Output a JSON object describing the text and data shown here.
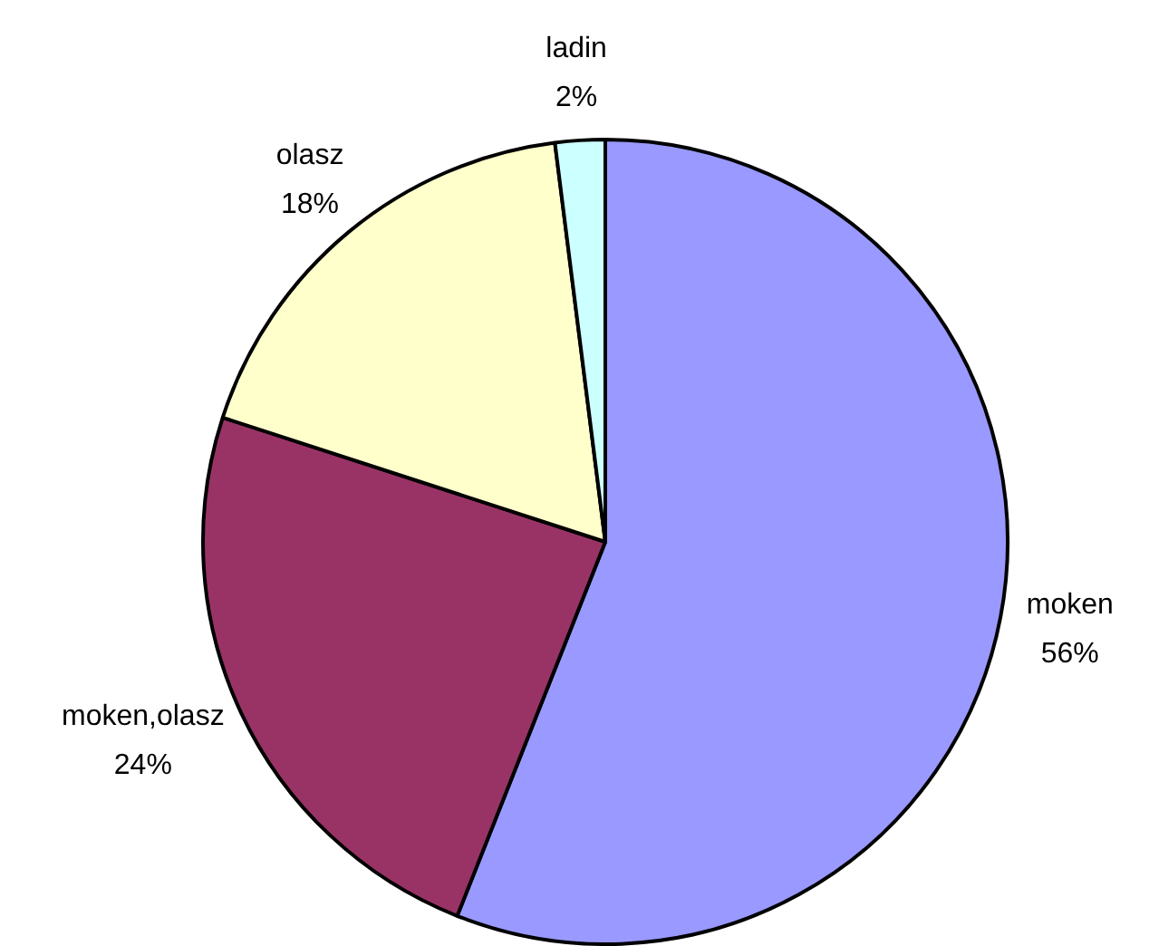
{
  "chart_data": {
    "type": "pie",
    "categories": [
      "moken",
      "moken,olasz",
      "olasz",
      "ladin"
    ],
    "values": [
      56,
      24,
      18,
      2
    ],
    "colors": [
      "#9999ff",
      "#993366",
      "#ffffcc",
      "#ccffff"
    ],
    "value_labels": [
      "56%",
      "24%",
      "18%",
      "2%"
    ]
  }
}
